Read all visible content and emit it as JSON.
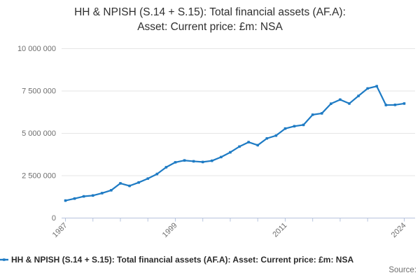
{
  "title": {
    "line1": "HH & NPISH (S.14 + S.15): Total financial assets (AF.A):",
    "line2": "Asset: Current price: £m: NSA"
  },
  "legend": {
    "label": "HH & NPISH (S.14 + S.15): Total financial assets (AF.A): Asset: Current price: £m: NSA"
  },
  "source_label": "Source:",
  "colors": {
    "series": "#1e7bc4",
    "grid": "#e6e6e6",
    "axis": "#b6c3dd",
    "muted_text": "#6e6e6e",
    "dark_text": "#2b2b2b"
  },
  "chart_data": {
    "type": "line",
    "title": "HH & NPISH (S.14 + S.15): Total financial assets (AF.A): Asset: Current price: £m: NSA",
    "xlabel": "",
    "ylabel": "",
    "xlim": [
      1987,
      2024
    ],
    "ylim": [
      0,
      10000000
    ],
    "grid": true,
    "legend_position": "bottom-left",
    "marker": "square",
    "x": [
      1987,
      1988,
      1989,
      1990,
      1991,
      1992,
      1993,
      1994,
      1995,
      1996,
      1997,
      1998,
      1999,
      2000,
      2001,
      2002,
      2003,
      2004,
      2005,
      2006,
      2007,
      2008,
      2009,
      2010,
      2011,
      2012,
      2013,
      2014,
      2015,
      2016,
      2017,
      2018,
      2019,
      2020,
      2021,
      2022,
      2023,
      2024
    ],
    "series": [
      {
        "name": "HH & NPISH (S.14 + S.15): Total financial assets (AF.A): Asset: Current price: £m: NSA",
        "values": [
          1030000,
          1150000,
          1280000,
          1330000,
          1470000,
          1640000,
          2050000,
          1900000,
          2100000,
          2330000,
          2600000,
          3000000,
          3290000,
          3400000,
          3350000,
          3310000,
          3380000,
          3600000,
          3880000,
          4220000,
          4480000,
          4300000,
          4700000,
          4870000,
          5280000,
          5420000,
          5500000,
          6100000,
          6180000,
          6750000,
          6990000,
          6760000,
          7210000,
          7650000,
          7780000,
          6670000,
          6680000,
          6760000
        ]
      }
    ],
    "x_ticks": [
      1987,
      1990,
      1993,
      1996,
      1999,
      2002,
      2005,
      2008,
      2011,
      2014,
      2017,
      2020,
      2024
    ],
    "x_tick_labels": [
      "1987",
      "1999",
      "2011",
      "2024"
    ],
    "y_ticks": [
      {
        "value": 0,
        "label": "0"
      },
      {
        "value": 2500000,
        "label": "2 500 000"
      },
      {
        "value": 5000000,
        "label": "5 000 000"
      },
      {
        "value": 7500000,
        "label": "7 500 000"
      },
      {
        "value": 10000000,
        "label": "10 000 000"
      }
    ]
  }
}
